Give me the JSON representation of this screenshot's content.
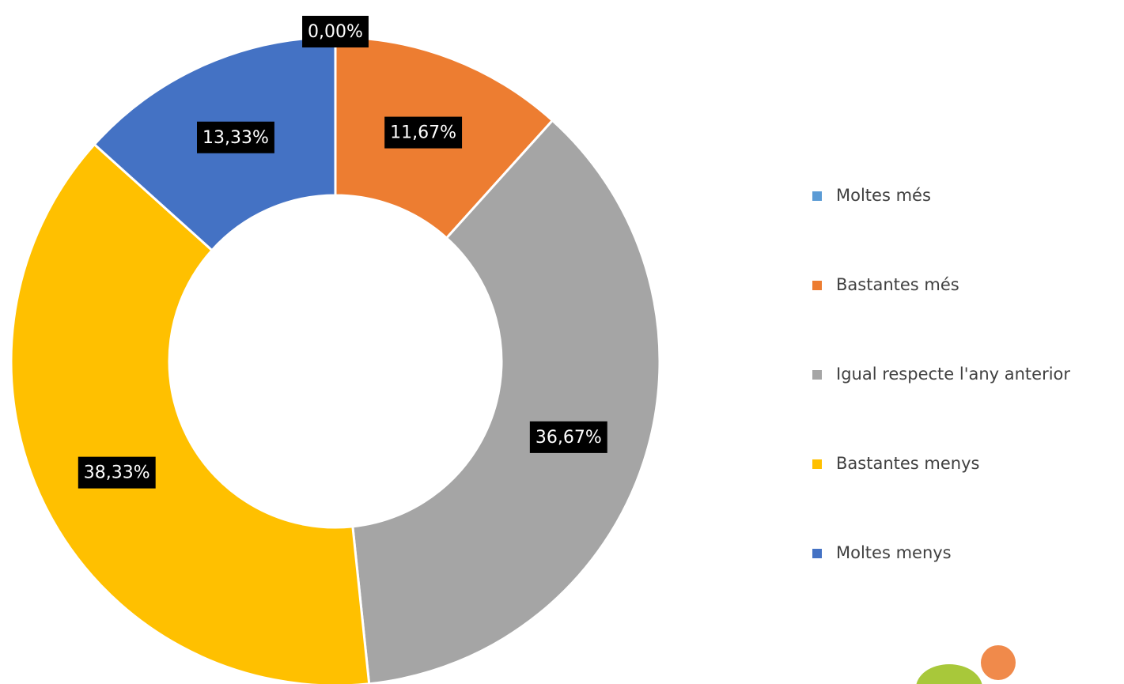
{
  "chart_data": {
    "type": "donut",
    "categories": [
      "Moltes més",
      "Bastantes més",
      "Igual respecte l'any anterior",
      "Bastantes menys",
      "Moltes menys"
    ],
    "values": [
      0,
      11.67,
      36.67,
      38.33,
      13.33
    ],
    "value_labels": [
      "0,00%",
      "11,67%",
      "36,67%",
      "38,33%",
      "13,33%"
    ],
    "colors": [
      "#5b9bd5",
      "#ed7d31",
      "#a5a5a5",
      "#ffc000",
      "#4472c4"
    ],
    "legend": "right"
  }
}
